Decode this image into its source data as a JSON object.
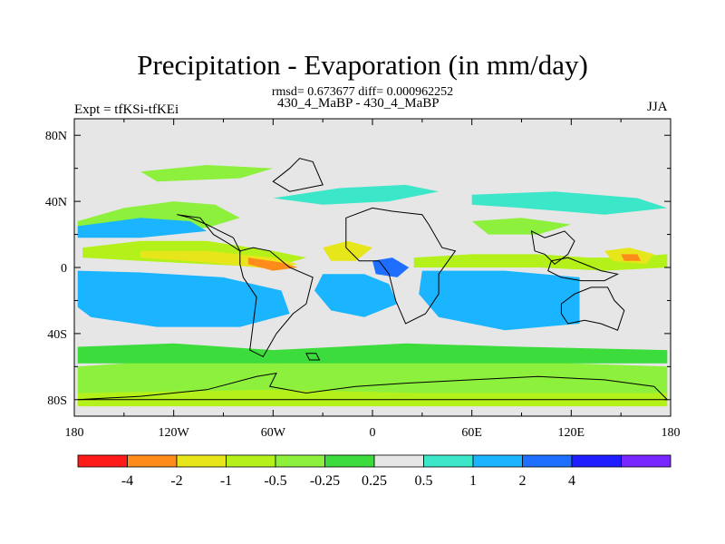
{
  "header": {
    "title": "Precipitation - Evaporation (in mm/day)",
    "stats": "rmsd= 0.673677 diff= 0.000962252",
    "left_label": "Expt = tfKSi-tfKEi",
    "center_label": "430_4_MaBP - 430_4_MaBP",
    "right_label": "JJA"
  },
  "chart_data": {
    "type": "heatmap",
    "title": "Precipitation - Evaporation (in mm/day)",
    "xlim": [
      -180,
      180
    ],
    "ylim": [
      -90,
      90
    ],
    "x_ticks": [
      {
        "value": -180,
        "label": "180"
      },
      {
        "value": -120,
        "label": "120W"
      },
      {
        "value": -60,
        "label": "60W"
      },
      {
        "value": 0,
        "label": "0"
      },
      {
        "value": 60,
        "label": "60E"
      },
      {
        "value": 120,
        "label": "120E"
      },
      {
        "value": 180,
        "label": "180"
      }
    ],
    "y_ticks": [
      {
        "value": 80,
        "label": "80N"
      },
      {
        "value": 40,
        "label": "40N"
      },
      {
        "value": 0,
        "label": "0"
      },
      {
        "value": -40,
        "label": "40S"
      },
      {
        "value": -80,
        "label": "80S"
      }
    ],
    "background_color": "#e6e6e6",
    "colorbar": {
      "colors": [
        "#ff1a1a",
        "#ff8c1a",
        "#e6e61a",
        "#b4f01a",
        "#8cf03c",
        "#3cdc3c",
        "#e6e6e6",
        "#3ce6c8",
        "#1ab4ff",
        "#1e6eff",
        "#1e1eff",
        "#7828ff"
      ],
      "labels": [
        "-4",
        "-2",
        "-1",
        "-0.5",
        "-0.25",
        "0.25",
        "0.5",
        "1",
        "2",
        "4"
      ]
    },
    "regions": [
      {
        "name": "nh-pacific-storm-track",
        "level": -0.5,
        "points": [
          [
            -178,
            28
          ],
          [
            -150,
            36
          ],
          [
            -120,
            40
          ],
          [
            -95,
            38
          ],
          [
            -80,
            30
          ],
          [
            -100,
            24
          ],
          [
            -140,
            22
          ],
          [
            -178,
            20
          ]
        ]
      },
      {
        "name": "north-pacific-wet",
        "level": 1,
        "points": [
          [
            -178,
            25
          ],
          [
            -140,
            30
          ],
          [
            -110,
            28
          ],
          [
            -100,
            22
          ],
          [
            -140,
            18
          ],
          [
            -178,
            18
          ]
        ]
      },
      {
        "name": "itcz-pacific",
        "level": -1,
        "points": [
          [
            -175,
            12
          ],
          [
            -140,
            16
          ],
          [
            -100,
            16
          ],
          [
            -60,
            10
          ],
          [
            -40,
            6
          ],
          [
            -60,
            0
          ],
          [
            -100,
            2
          ],
          [
            -140,
            4
          ],
          [
            -175,
            6
          ]
        ]
      },
      {
        "name": "itcz-core",
        "level": -2,
        "points": [
          [
            -140,
            10
          ],
          [
            -100,
            10
          ],
          [
            -60,
            6
          ],
          [
            -45,
            2
          ],
          [
            -60,
            -1
          ],
          [
            -100,
            3
          ],
          [
            -140,
            6
          ]
        ]
      },
      {
        "name": "itcz-peak",
        "level": -4,
        "points": [
          [
            -75,
            6
          ],
          [
            -55,
            3
          ],
          [
            -45,
            0
          ],
          [
            -60,
            -2
          ],
          [
            -75,
            2
          ]
        ]
      },
      {
        "name": "south-pacific-dry",
        "level": 2,
        "points": [
          [
            -170,
            -5
          ],
          [
            -140,
            -6
          ],
          [
            -100,
            -10
          ],
          [
            -70,
            -16
          ],
          [
            -60,
            -22
          ],
          [
            -80,
            -28
          ],
          [
            -120,
            -26
          ],
          [
            -160,
            -20
          ],
          [
            -178,
            -14
          ]
        ]
      },
      {
        "name": "south-pacific-dry-outer",
        "level": 1,
        "points": [
          [
            -178,
            -2
          ],
          [
            -140,
            -3
          ],
          [
            -90,
            -6
          ],
          [
            -55,
            -14
          ],
          [
            -50,
            -28
          ],
          [
            -80,
            -36
          ],
          [
            -130,
            -36
          ],
          [
            -170,
            -30
          ],
          [
            -178,
            -24
          ]
        ]
      },
      {
        "name": "south-atlantic-dry",
        "level": 1,
        "points": [
          [
            -30,
            -4
          ],
          [
            -5,
            -4
          ],
          [
            10,
            -10
          ],
          [
            15,
            -22
          ],
          [
            -5,
            -30
          ],
          [
            -25,
            -26
          ],
          [
            -35,
            -14
          ]
        ]
      },
      {
        "name": "africa-west-wet",
        "level": -2,
        "points": [
          [
            -30,
            12
          ],
          [
            -15,
            16
          ],
          [
            0,
            12
          ],
          [
            -10,
            4
          ],
          [
            -25,
            4
          ]
        ]
      },
      {
        "name": "gulf-guinea-dry",
        "level": 2,
        "points": [
          [
            0,
            4
          ],
          [
            12,
            6
          ],
          [
            22,
            0
          ],
          [
            15,
            -6
          ],
          [
            2,
            -4
          ]
        ]
      },
      {
        "name": "indian-ocean-itcz",
        "level": -1,
        "points": [
          [
            25,
            6
          ],
          [
            60,
            8
          ],
          [
            100,
            8
          ],
          [
            130,
            6
          ],
          [
            150,
            6
          ],
          [
            178,
            8
          ],
          [
            178,
            0
          ],
          [
            140,
            -2
          ],
          [
            100,
            0
          ],
          [
            60,
            0
          ],
          [
            25,
            0
          ]
        ]
      },
      {
        "name": "indian-ocean-dry",
        "level": 2,
        "points": [
          [
            40,
            -6
          ],
          [
            80,
            -8
          ],
          [
            110,
            -14
          ],
          [
            110,
            -26
          ],
          [
            80,
            -28
          ],
          [
            55,
            -22
          ],
          [
            40,
            -14
          ]
        ]
      },
      {
        "name": "indian-ocean-dry-outer",
        "level": 1,
        "points": [
          [
            30,
            -2
          ],
          [
            80,
            -2
          ],
          [
            125,
            -6
          ],
          [
            125,
            -34
          ],
          [
            80,
            -38
          ],
          [
            40,
            -30
          ],
          [
            28,
            -16
          ]
        ]
      },
      {
        "name": "west-pacific-wet",
        "level": -2,
        "points": [
          [
            140,
            10
          ],
          [
            155,
            12
          ],
          [
            170,
            8
          ],
          [
            165,
            2
          ],
          [
            145,
            4
          ]
        ]
      },
      {
        "name": "west-pacific-wet-peak",
        "level": -4,
        "points": [
          [
            150,
            8
          ],
          [
            160,
            8
          ],
          [
            162,
            4
          ],
          [
            152,
            4
          ]
        ]
      },
      {
        "name": "nh-atlantic-track",
        "level": 0.5,
        "points": [
          [
            -60,
            42
          ],
          [
            -20,
            48
          ],
          [
            20,
            50
          ],
          [
            40,
            46
          ],
          [
            10,
            40
          ],
          [
            -30,
            38
          ]
        ]
      },
      {
        "name": "eurasia-wet",
        "level": 0.5,
        "points": [
          [
            60,
            44
          ],
          [
            110,
            46
          ],
          [
            160,
            42
          ],
          [
            178,
            36
          ],
          [
            140,
            32
          ],
          [
            90,
            36
          ],
          [
            60,
            38
          ]
        ]
      },
      {
        "name": "north-indian-monsoon",
        "level": -0.5,
        "points": [
          [
            60,
            28
          ],
          [
            90,
            30
          ],
          [
            120,
            26
          ],
          [
            100,
            20
          ],
          [
            70,
            20
          ]
        ]
      },
      {
        "name": "nh-high-latitude",
        "level": -0.5,
        "points": [
          [
            -140,
            58
          ],
          [
            -100,
            62
          ],
          [
            -60,
            60
          ],
          [
            -80,
            54
          ],
          [
            -130,
            52
          ]
        ]
      },
      {
        "name": "southern-ocean-wet",
        "level": -0.5,
        "points": [
          [
            -178,
            -60
          ],
          [
            -120,
            -56
          ],
          [
            -60,
            -58
          ],
          [
            0,
            -56
          ],
          [
            60,
            -54
          ],
          [
            120,
            -58
          ],
          [
            178,
            -60
          ],
          [
            178,
            -76
          ],
          [
            -178,
            -76
          ]
        ]
      },
      {
        "name": "antarctic-coast",
        "level": -1,
        "points": [
          [
            -178,
            -76
          ],
          [
            -60,
            -74
          ],
          [
            30,
            -76
          ],
          [
            178,
            -76
          ],
          [
            178,
            -84
          ],
          [
            -178,
            -84
          ]
        ]
      },
      {
        "name": "antarctic-coast-outer",
        "level": -0.25,
        "points": [
          [
            -178,
            -48
          ],
          [
            -120,
            -46
          ],
          [
            -60,
            -50
          ],
          [
            20,
            -46
          ],
          [
            90,
            -48
          ],
          [
            178,
            -50
          ],
          [
            178,
            -58
          ],
          [
            -178,
            -58
          ]
        ]
      }
    ],
    "land_outlines": [
      {
        "name": "south-america",
        "points": [
          [
            -80,
            10
          ],
          [
            -72,
            12
          ],
          [
            -62,
            10
          ],
          [
            -50,
            0
          ],
          [
            -36,
            -6
          ],
          [
            -40,
            -22
          ],
          [
            -48,
            -28
          ],
          [
            -58,
            -40
          ],
          [
            -66,
            -54
          ],
          [
            -74,
            -50
          ],
          [
            -72,
            -34
          ],
          [
            -70,
            -18
          ],
          [
            -78,
            -6
          ],
          [
            -80,
            2
          ]
        ]
      },
      {
        "name": "africa",
        "points": [
          [
            -16,
            30
          ],
          [
            0,
            36
          ],
          [
            12,
            34
          ],
          [
            30,
            32
          ],
          [
            34,
            26
          ],
          [
            42,
            12
          ],
          [
            50,
            10
          ],
          [
            40,
            -4
          ],
          [
            40,
            -16
          ],
          [
            32,
            -28
          ],
          [
            20,
            -34
          ],
          [
            14,
            -20
          ],
          [
            10,
            -4
          ],
          [
            4,
            4
          ],
          [
            -8,
            4
          ],
          [
            -16,
            12
          ]
        ]
      },
      {
        "name": "central-america",
        "points": [
          [
            -118,
            32
          ],
          [
            -104,
            30
          ],
          [
            -96,
            20
          ],
          [
            -86,
            14
          ],
          [
            -80,
            10
          ],
          [
            -84,
            18
          ],
          [
            -92,
            22
          ],
          [
            -100,
            26
          ],
          [
            -110,
            30
          ]
        ]
      },
      {
        "name": "greenland",
        "points": [
          [
            -60,
            52
          ],
          [
            -50,
            60
          ],
          [
            -44,
            66
          ],
          [
            -36,
            64
          ],
          [
            -30,
            50
          ],
          [
            -50,
            46
          ]
        ]
      },
      {
        "name": "australia",
        "points": [
          [
            114,
            -22
          ],
          [
            122,
            -16
          ],
          [
            132,
            -12
          ],
          [
            142,
            -12
          ],
          [
            146,
            -20
          ],
          [
            152,
            -26
          ],
          [
            148,
            -38
          ],
          [
            138,
            -34
          ],
          [
            128,
            -32
          ],
          [
            118,
            -34
          ],
          [
            114,
            -28
          ]
        ]
      },
      {
        "name": "southeast-asia",
        "points": [
          [
            96,
            22
          ],
          [
            104,
            18
          ],
          [
            110,
            20
          ],
          [
            116,
            22
          ],
          [
            122,
            16
          ],
          [
            118,
            8
          ],
          [
            110,
            2
          ],
          [
            104,
            8
          ],
          [
            98,
            10
          ]
        ]
      },
      {
        "name": "maritime-continent",
        "points": [
          [
            108,
            4
          ],
          [
            118,
            6
          ],
          [
            128,
            2
          ],
          [
            138,
            -2
          ],
          [
            148,
            -4
          ],
          [
            140,
            -8
          ],
          [
            126,
            -8
          ],
          [
            114,
            -6
          ],
          [
            106,
            -2
          ]
        ]
      },
      {
        "name": "antarctica",
        "points": [
          [
            -178,
            -80
          ],
          [
            -140,
            -78
          ],
          [
            -100,
            -74
          ],
          [
            -70,
            -66
          ],
          [
            -58,
            -64
          ],
          [
            -62,
            -72
          ],
          [
            -40,
            -76
          ],
          [
            -10,
            -72
          ],
          [
            20,
            -70
          ],
          [
            60,
            -68
          ],
          [
            100,
            -66
          ],
          [
            140,
            -68
          ],
          [
            170,
            -72
          ],
          [
            178,
            -80
          ]
        ]
      },
      {
        "name": "south-georgia",
        "points": [
          [
            -40,
            -52
          ],
          [
            -34,
            -52
          ],
          [
            -32,
            -56
          ],
          [
            -38,
            -56
          ]
        ]
      }
    ]
  }
}
